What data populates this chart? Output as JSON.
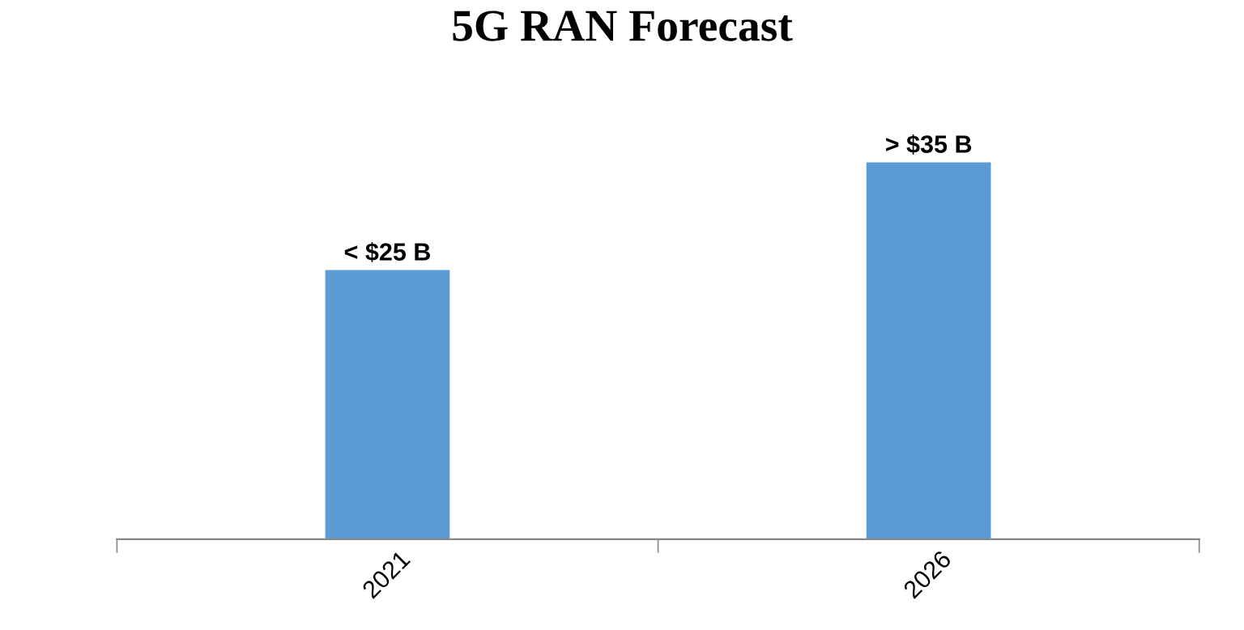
{
  "chart_data": {
    "type": "bar",
    "title": "5G RAN Forecast",
    "categories": [
      "2021",
      "2026"
    ],
    "values": [
      25,
      35
    ],
    "value_labels": [
      "< $25 B",
      "> $35 B"
    ],
    "color": "#5b9bd5",
    "grid": false
  }
}
